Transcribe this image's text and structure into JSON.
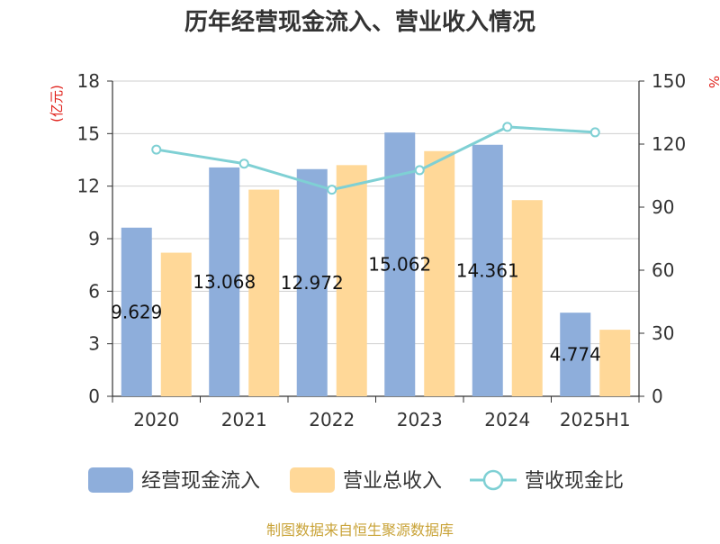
{
  "chart_data": {
    "type": "bar",
    "title": "历年经营现金流入、营业收入情况",
    "categories": [
      "2020",
      "2021",
      "2022",
      "2023",
      "2024",
      "2025H1"
    ],
    "series": [
      {
        "name": "经营现金流入",
        "type": "bar",
        "axis": "left",
        "color": "#8eaedb",
        "values": [
          9.629,
          13.068,
          12.972,
          15.062,
          14.361,
          4.774
        ],
        "data_labels": [
          "9.629",
          "13.068",
          "12.972",
          "15.062",
          "14.361",
          "4.774"
        ]
      },
      {
        "name": "营业总收入",
        "type": "bar",
        "axis": "left",
        "color": "#ffd898",
        "values": [
          8.2,
          11.8,
          13.2,
          14.0,
          11.2,
          3.8
        ]
      },
      {
        "name": "营收现金比",
        "type": "line",
        "axis": "right",
        "color": "#7fd0d4",
        "values": [
          117.4,
          110.7,
          98.3,
          107.6,
          128.2,
          125.6
        ]
      }
    ],
    "y_left": {
      "label": "(亿元)",
      "min": 0,
      "max": 18,
      "ticks": [
        "0",
        "3",
        "6",
        "9",
        "12",
        "15",
        "18"
      ]
    },
    "y_right": {
      "label": "%",
      "min": 0,
      "max": 150,
      "ticks": [
        "0",
        "30",
        "60",
        "90",
        "120",
        "150"
      ]
    },
    "grid": true,
    "legend_position": "bottom",
    "footer": "制图数据来自恒生聚源数据库",
    "colors": {
      "axis_label": "#e0201a",
      "footer": "#c9a338",
      "grid": "#cfcfcf",
      "text": "#333333"
    }
  }
}
